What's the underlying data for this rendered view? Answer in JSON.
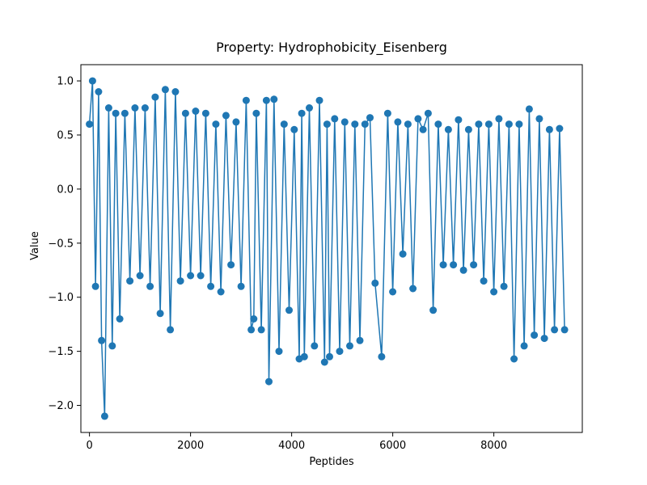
{
  "chart_data": {
    "type": "line",
    "title": "Property: Hydrophobicity_Eisenberg",
    "xlabel": "Peptides",
    "ylabel": "Value",
    "xlim": [
      -170,
      9750
    ],
    "ylim": [
      -2.25,
      1.15
    ],
    "xticks": [
      0,
      2000,
      4000,
      6000,
      8000
    ],
    "xtick_labels": [
      "0",
      "2000",
      "4000",
      "6000",
      "8000"
    ],
    "yticks": [
      1.0,
      0.5,
      0.0,
      -0.5,
      -1.0,
      -1.5,
      -2.0
    ],
    "ytick_labels": [
      "1.0",
      "0.5",
      "0.0",
      "−0.5",
      "−1.0",
      "−1.5",
      "−2.0"
    ],
    "grid": false,
    "color": "#1f77b4",
    "marker": "circle",
    "series": [
      {
        "x": [
          0,
          60,
          120,
          180,
          240,
          300,
          380,
          450,
          520,
          600,
          700,
          800,
          900,
          1000,
          1100,
          1200,
          1300,
          1400,
          1500,
          1600,
          1700,
          1800,
          1900,
          2000,
          2100,
          2200,
          2300,
          2400,
          2500,
          2600,
          2700,
          2800,
          2900,
          3000,
          3100,
          3200,
          3250,
          3300,
          3400,
          3500,
          3550,
          3650,
          3750,
          3850,
          3950,
          4050,
          4150,
          4200,
          4250,
          4350,
          4450,
          4550,
          4650,
          4700,
          4750,
          4850,
          4950,
          5050,
          5150,
          5250,
          5350,
          5450,
          5550,
          5650,
          5780,
          5900,
          6000,
          6100,
          6200,
          6300,
          6400,
          6500,
          6600,
          6700,
          6800,
          6900,
          7000,
          7100,
          7200,
          7300,
          7400,
          7500,
          7600,
          7700,
          7800,
          7900,
          8000,
          8100,
          8200,
          8300,
          8400,
          8500,
          8600,
          8700,
          8800,
          8900,
          9000,
          9100,
          9200,
          9300,
          9400
        ],
        "y": [
          0.6,
          1.0,
          -0.9,
          0.9,
          -1.4,
          -2.1,
          0.75,
          -1.45,
          0.7,
          -1.2,
          0.7,
          -0.85,
          0.75,
          -0.8,
          0.75,
          -0.9,
          0.85,
          -1.15,
          0.92,
          -1.3,
          0.9,
          -0.85,
          0.7,
          -0.8,
          0.72,
          -0.8,
          0.7,
          -0.9,
          0.6,
          -0.95,
          0.68,
          -0.7,
          0.62,
          -0.9,
          0.82,
          -1.3,
          -1.2,
          0.7,
          -1.3,
          0.82,
          -1.78,
          0.83,
          -1.5,
          0.6,
          -1.12,
          0.55,
          -1.57,
          0.7,
          -1.55,
          0.75,
          -1.45,
          0.82,
          -1.6,
          0.6,
          -1.55,
          0.65,
          -1.5,
          0.62,
          -1.45,
          0.6,
          -1.4,
          0.6,
          0.66,
          -0.87,
          -1.55,
          0.7,
          -0.95,
          0.62,
          -0.6,
          0.6,
          -0.92,
          0.65,
          0.55,
          0.7,
          -1.12,
          0.6,
          -0.7,
          0.55,
          -0.7,
          0.64,
          -0.75,
          0.55,
          -0.7,
          0.6,
          -0.85,
          0.6,
          -0.95,
          0.65,
          -0.9,
          0.6,
          -1.57,
          0.6,
          -1.45,
          0.74,
          -1.35,
          0.65,
          -1.38,
          0.55,
          -1.3,
          0.56,
          -1.3
        ]
      }
    ]
  }
}
